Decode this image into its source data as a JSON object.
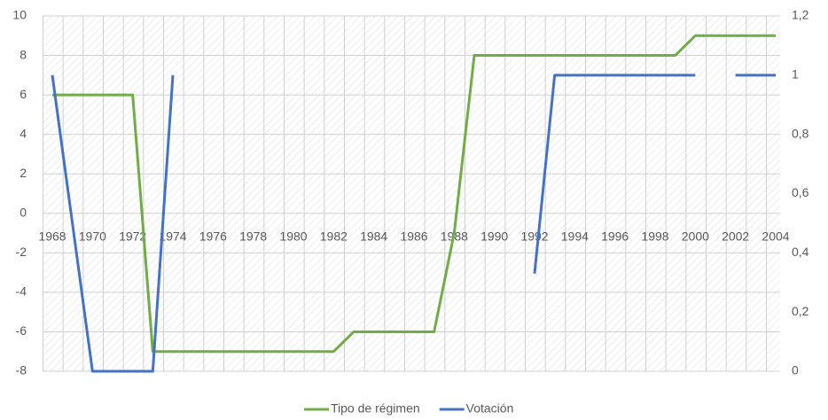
{
  "chart_data": {
    "type": "line",
    "categories": [
      "1968",
      null,
      "1970",
      null,
      "1972",
      null,
      "1974",
      null,
      "1976",
      null,
      "1978",
      null,
      "1980",
      null,
      "1982",
      null,
      "1984",
      null,
      "1986",
      null,
      "1988",
      null,
      "1990",
      null,
      "1992",
      null,
      "1994",
      null,
      "1996",
      null,
      "1998",
      null,
      "2000",
      null,
      "2002",
      null,
      "2004"
    ],
    "series": [
      {
        "name": "Tipo de régimen",
        "color": "#70ad47",
        "axis": "y",
        "values": [
          6,
          6,
          6,
          6,
          6,
          -7,
          -7,
          -7,
          -7,
          -7,
          -7,
          -7,
          -7,
          -7,
          -7,
          -6,
          -6,
          -6,
          -6,
          -6,
          -1,
          8,
          8,
          8,
          8,
          8,
          8,
          8,
          8,
          8,
          8,
          8,
          9,
          9,
          9,
          9,
          9
        ]
      },
      {
        "name": "Votación",
        "color": "#4472c4",
        "axis": "y2",
        "values": [
          1,
          0.5,
          0,
          0,
          0,
          0,
          1,
          null,
          null,
          null,
          null,
          null,
          null,
          null,
          null,
          null,
          null,
          null,
          null,
          null,
          null,
          null,
          null,
          null,
          0.33,
          1,
          1,
          1,
          1,
          1,
          1,
          1,
          1,
          null,
          1,
          1,
          1
        ]
      }
    ],
    "ylim": [
      -8,
      10
    ],
    "yticks": [
      -8,
      -6,
      -4,
      -2,
      0,
      2,
      4,
      6,
      8,
      10
    ],
    "y2lim": [
      0,
      1.2
    ],
    "y2ticks": [
      0,
      {
        "value": 0.2,
        "label": "0,2"
      },
      {
        "value": 0.4,
        "label": "0,4"
      },
      {
        "value": 0.6,
        "label": "0,6"
      },
      {
        "value": 0.8,
        "label": "0,8"
      },
      1,
      {
        "value": 1.2,
        "label": "1,2"
      }
    ],
    "grid": true,
    "legend": "bottom"
  }
}
